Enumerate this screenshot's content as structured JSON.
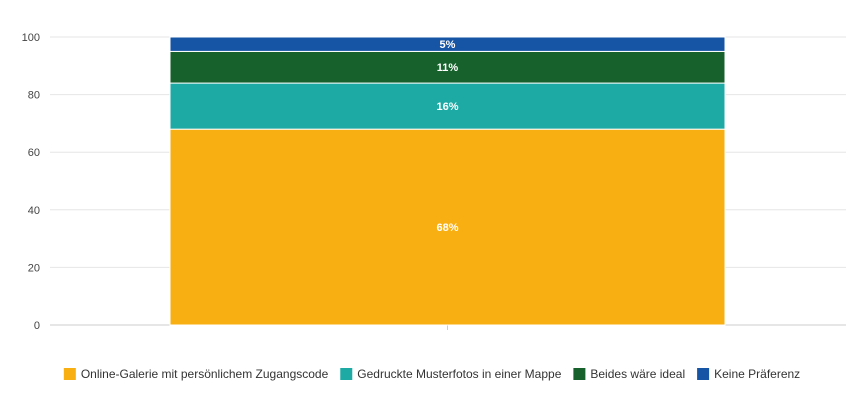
{
  "chart_data": {
    "type": "bar",
    "stacked": true,
    "categories": [
      ""
    ],
    "series": [
      {
        "name": "Online-Galerie mit persönlichem Zugangscode",
        "values": [
          68
        ],
        "label": "68%",
        "color": "#F8AF12"
      },
      {
        "name": "Gedruckte Musterfotos in einer Mappe",
        "values": [
          16
        ],
        "label": "16%",
        "color": "#1DAAA4"
      },
      {
        "name": "Beides wäre ideal",
        "values": [
          11
        ],
        "label": "11%",
        "color": "#16612C"
      },
      {
        "name": "Keine Präferenz",
        "values": [
          5
        ],
        "label": "5%",
        "color": "#1654A5"
      }
    ],
    "ylim": [
      0,
      100
    ],
    "yticks": [
      "0",
      "20",
      "40",
      "60",
      "80",
      "100"
    ],
    "grid": true,
    "legend_position": "bottom",
    "title": "",
    "xlabel": "",
    "ylabel": ""
  }
}
